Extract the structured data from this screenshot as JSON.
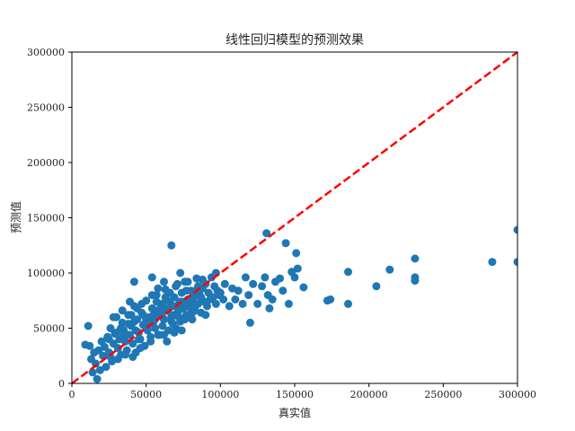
{
  "chart_data": {
    "type": "scatter",
    "title": "线性回归模型的预测效果",
    "xlabel": "真实值",
    "ylabel": "预测值",
    "xlim": [
      0,
      300000
    ],
    "ylim": [
      0,
      300000
    ],
    "xticks": [
      "0",
      "50000",
      "100000",
      "150000",
      "200000",
      "250000",
      "300000"
    ],
    "yticks": [
      "0",
      "50000",
      "100000",
      "150000",
      "200000",
      "250000",
      "300000"
    ],
    "grid": false,
    "marker_color": "#1f77b4",
    "reference_line": {
      "from": [
        0,
        0
      ],
      "to": [
        300000,
        300000
      ],
      "color": "#ff0000",
      "style": "dashed"
    },
    "series": [
      {
        "points": [
          [
            9000,
            35000
          ],
          [
            11000,
            52000
          ],
          [
            12000,
            34000
          ],
          [
            13000,
            22000
          ],
          [
            14000,
            10000
          ],
          [
            15000,
            28000
          ],
          [
            16000,
            18000
          ],
          [
            17000,
            4000
          ],
          [
            18000,
            30000
          ],
          [
            19000,
            12000
          ],
          [
            20000,
            38000
          ],
          [
            21000,
            25000
          ],
          [
            22000,
            33000
          ],
          [
            23000,
            15000
          ],
          [
            24000,
            42000
          ],
          [
            25000,
            28000
          ],
          [
            26000,
            50000
          ],
          [
            27000,
            20000
          ],
          [
            28000,
            36000
          ],
          [
            29000,
            45000
          ],
          [
            30000,
            60000
          ],
          [
            31000,
            32000
          ],
          [
            32000,
            40000
          ],
          [
            33000,
            26000
          ],
          [
            34000,
            55000
          ],
          [
            35000,
            48000
          ],
          [
            36000,
            38000
          ],
          [
            37000,
            30000
          ],
          [
            38000,
            62000
          ],
          [
            39000,
            44000
          ],
          [
            40000,
            52000
          ],
          [
            41000,
            36000
          ],
          [
            42000,
            70000
          ],
          [
            43000,
            28000
          ],
          [
            44000,
            58000
          ],
          [
            45000,
            46000
          ],
          [
            46000,
            40000
          ],
          [
            47000,
            64000
          ],
          [
            48000,
            53000
          ],
          [
            49000,
            34000
          ],
          [
            50000,
            75000
          ],
          [
            51000,
            48000
          ],
          [
            52000,
            60000
          ],
          [
            53000,
            42000
          ],
          [
            54000,
            68000
          ],
          [
            55000,
            56000
          ],
          [
            56000,
            50000
          ],
          [
            57000,
            80000
          ],
          [
            58000,
            44000
          ],
          [
            59000,
            62000
          ],
          [
            60000,
            70000
          ],
          [
            61000,
            52000
          ],
          [
            62000,
            58000
          ],
          [
            63000,
            85000
          ],
          [
            64000,
            66000
          ],
          [
            65000,
            48000
          ],
          [
            66000,
            74000
          ],
          [
            67000,
            60000
          ],
          [
            68000,
            54000
          ],
          [
            69000,
            78000
          ],
          [
            70000,
            88000
          ],
          [
            71000,
            64000
          ],
          [
            72000,
            72000
          ],
          [
            73000,
            56000
          ],
          [
            74000,
            82000
          ],
          [
            75000,
            68000
          ],
          [
            76000,
            92000
          ],
          [
            77000,
            62000
          ],
          [
            78000,
            76000
          ],
          [
            79000,
            70000
          ],
          [
            80000,
            84000
          ],
          [
            81000,
            58000
          ],
          [
            82000,
            78000
          ],
          [
            83000,
            66000
          ],
          [
            84000,
            95000
          ],
          [
            85000,
            72000
          ],
          [
            86000,
            80000
          ],
          [
            87000,
            64000
          ],
          [
            88000,
            86000
          ],
          [
            89000,
            74000
          ],
          [
            90000,
            90000
          ],
          [
            91000,
            70000
          ],
          [
            92000,
            82000
          ],
          [
            93000,
            76000
          ],
          [
            94000,
            96000
          ],
          [
            95000,
            78000
          ],
          [
            96000,
            88000
          ],
          [
            97000,
            72000
          ],
          [
            98000,
            84000
          ],
          [
            99000,
            80000
          ],
          [
            26000,
            24000
          ],
          [
            31000,
            22000
          ],
          [
            36000,
            26000
          ],
          [
            41000,
            24000
          ],
          [
            46000,
            32000
          ],
          [
            53000,
            38000
          ],
          [
            59000,
            44000
          ],
          [
            64000,
            38000
          ],
          [
            69000,
            46000
          ],
          [
            74000,
            48000
          ],
          [
            33000,
            50000
          ],
          [
            38000,
            54000
          ],
          [
            43000,
            48000
          ],
          [
            48000,
            62000
          ],
          [
            56000,
            66000
          ],
          [
            61000,
            72000
          ],
          [
            66000,
            82000
          ],
          [
            71000,
            90000
          ],
          [
            76000,
            58000
          ],
          [
            81000,
            64000
          ],
          [
            45000,
            40000
          ],
          [
            50000,
            58000
          ],
          [
            55000,
            62000
          ],
          [
            60000,
            64000
          ],
          [
            65000,
            68000
          ],
          [
            70000,
            50000
          ],
          [
            75000,
            74000
          ],
          [
            80000,
            68000
          ],
          [
            85000,
            88000
          ],
          [
            90000,
            62000
          ],
          [
            40000,
            62000
          ],
          [
            44000,
            68000
          ],
          [
            52000,
            54000
          ],
          [
            57000,
            74000
          ],
          [
            62000,
            44000
          ],
          [
            67000,
            56000
          ],
          [
            72000,
            66000
          ],
          [
            77000,
            84000
          ],
          [
            82000,
            72000
          ],
          [
            87000,
            78000
          ],
          [
            28000,
            60000
          ],
          [
            34000,
            66000
          ],
          [
            39000,
            74000
          ],
          [
            47000,
            72000
          ],
          [
            54000,
            80000
          ],
          [
            58000,
            86000
          ],
          [
            63000,
            78000
          ],
          [
            68000,
            70000
          ],
          [
            73000,
            74000
          ],
          [
            78000,
            92000
          ],
          [
            25000,
            40000
          ],
          [
            30000,
            46000
          ],
          [
            35000,
            44000
          ],
          [
            42000,
            56000
          ],
          [
            49000,
            52000
          ],
          [
            56000,
            58000
          ],
          [
            61000,
            60000
          ],
          [
            67000,
            62000
          ],
          [
            72000,
            60000
          ],
          [
            83000,
            84000
          ],
          [
            42000,
            92000
          ],
          [
            54000,
            96000
          ],
          [
            62000,
            92000
          ],
          [
            67000,
            125000
          ],
          [
            73000,
            100000
          ],
          [
            88000,
            94000
          ],
          [
            97000,
            100000
          ],
          [
            100000,
            82000
          ],
          [
            102000,
            76000
          ],
          [
            103000,
            90000
          ],
          [
            106000,
            70000
          ],
          [
            108000,
            86000
          ],
          [
            110000,
            76000
          ],
          [
            112000,
            84000
          ],
          [
            115000,
            72000
          ],
          [
            117000,
            96000
          ],
          [
            119000,
            80000
          ],
          [
            120000,
            55000
          ],
          [
            122000,
            90000
          ],
          [
            125000,
            72000
          ],
          [
            128000,
            88000
          ],
          [
            130000,
            96000
          ],
          [
            131000,
            136000
          ],
          [
            132000,
            80000
          ],
          [
            133000,
            68000
          ],
          [
            135000,
            76000
          ],
          [
            137000,
            92000
          ],
          [
            140000,
            95000
          ],
          [
            142000,
            84000
          ],
          [
            144000,
            127000
          ],
          [
            146000,
            72000
          ],
          [
            148000,
            101000
          ],
          [
            150000,
            96000
          ],
          [
            151000,
            118000
          ],
          [
            152000,
            104000
          ],
          [
            156000,
            87000
          ],
          [
            172000,
            75000
          ],
          [
            174000,
            76000
          ],
          [
            186000,
            101000
          ],
          [
            186000,
            72000
          ],
          [
            205000,
            88000
          ],
          [
            214000,
            103000
          ],
          [
            231000,
            96000
          ],
          [
            231000,
            93000
          ],
          [
            231000,
            113000
          ],
          [
            283000,
            110000
          ],
          [
            300000,
            139000
          ],
          [
            300000,
            110000
          ]
        ]
      }
    ]
  }
}
